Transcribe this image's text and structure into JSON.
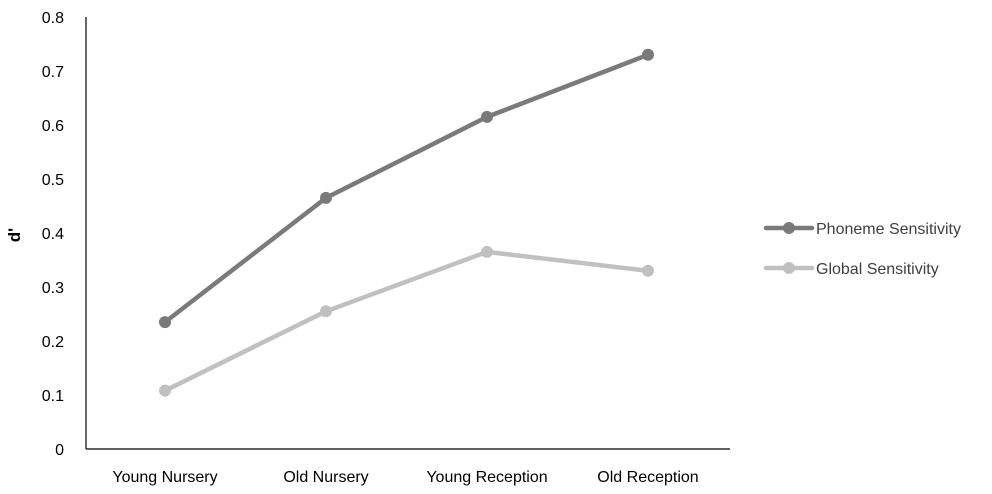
{
  "chart_data": {
    "type": "line",
    "title": "",
    "xlabel": "",
    "ylabel": "d'",
    "categories": [
      "Young Nursery",
      "Old Nursery",
      "Young Reception",
      "Old Reception"
    ],
    "ylim": [
      0,
      0.8
    ],
    "yticks": [
      "0",
      "0.1",
      "0.2",
      "0.3",
      "0.4",
      "0.5",
      "0.6",
      "0.7",
      "0.8"
    ],
    "grid": false,
    "legend_position": "right",
    "series": [
      {
        "name": "Phoneme Sensitivity",
        "color": "#7a7a7a",
        "values": [
          0.235,
          0.465,
          0.615,
          0.73
        ]
      },
      {
        "name": "Global Sensitivity",
        "color": "#c0c0c0",
        "values": [
          0.108,
          0.255,
          0.365,
          0.33
        ]
      }
    ]
  }
}
